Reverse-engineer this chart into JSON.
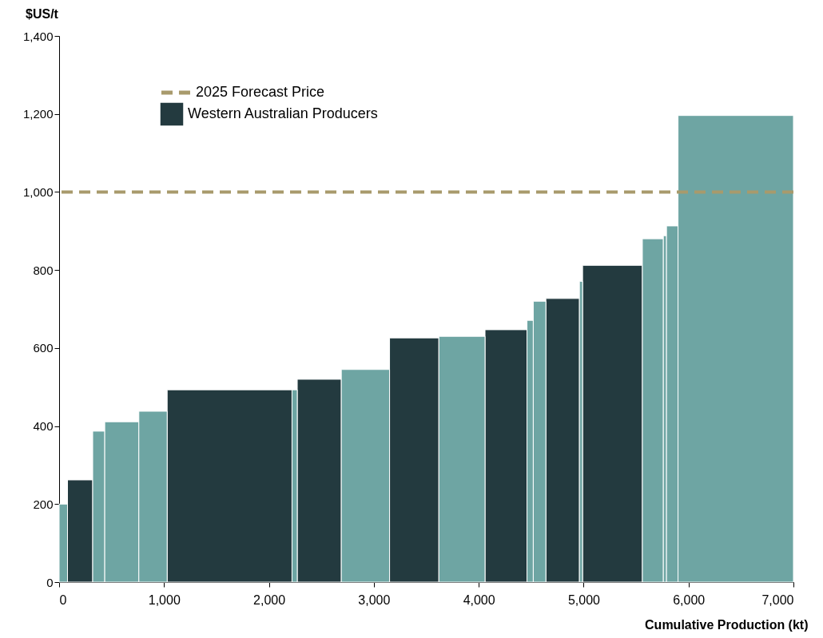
{
  "chart_data": {
    "type": "histogram",
    "xlabel": "Cumulative Production (kt)",
    "ylabel": "$US/t",
    "bins": [
      0,
      80,
      320,
      435,
      760,
      1030,
      2220,
      2270,
      2690,
      3150,
      3620,
      4060,
      4460,
      4520,
      4640,
      4960,
      4990,
      5560,
      5760,
      5790,
      5900,
      7000
    ],
    "series": [
      {
        "name": "Western Australian Producers",
        "color": "#233a3f",
        "values": [
          null,
          262,
          null,
          null,
          null,
          493,
          null,
          520,
          null,
          626,
          null,
          647,
          null,
          null,
          727,
          null,
          812,
          null,
          null,
          null,
          null
        ]
      },
      {
        "color": "#6ea5a3",
        "values": [
          200,
          null,
          387,
          411,
          438,
          null,
          493,
          null,
          545,
          null,
          630,
          null,
          671,
          720,
          null,
          771,
          null,
          880,
          888,
          913,
          1196
        ]
      }
    ],
    "xlim": [
      0,
      7000
    ],
    "xticks": [
      0,
      {
        "value": 1000,
        "label": "1,000"
      },
      {
        "value": 2000,
        "label": "2,000"
      },
      {
        "value": 3000,
        "label": "3,000"
      },
      {
        "value": 4000,
        "label": "4,000"
      },
      {
        "value": 5000,
        "label": "5,000"
      },
      {
        "value": 6000,
        "label": "6,000"
      },
      {
        "value": 7000,
        "label": "7,000"
      }
    ],
    "ylim": [
      0,
      1400
    ],
    "yticks": [
      0,
      200,
      400,
      600,
      800,
      {
        "value": 1000,
        "label": "1,000"
      },
      {
        "value": 1200,
        "label": "1,200"
      },
      {
        "value": 1400,
        "label": "1,400"
      }
    ],
    "ref_lines": [
      {
        "axis": "y",
        "value": 1000,
        "label": "2025 Forecast Price",
        "color": "#a89a6c",
        "line_style": "dashed"
      }
    ],
    "legend": "top left",
    "grid": false
  }
}
